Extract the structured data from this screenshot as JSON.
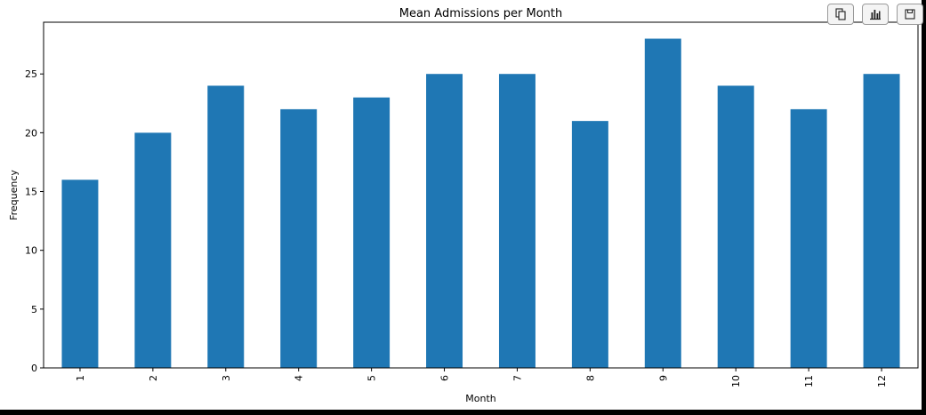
{
  "chart_data": {
    "type": "bar",
    "title": "Mean Admissions per Month",
    "xlabel": "Month",
    "ylabel": "Frequency",
    "categories": [
      "1",
      "2",
      "3",
      "4",
      "5",
      "6",
      "7",
      "8",
      "9",
      "10",
      "11",
      "12"
    ],
    "values": [
      16,
      20,
      24,
      22,
      23,
      25,
      25,
      21,
      28,
      24,
      22,
      25
    ],
    "ylim": [
      0,
      29.4
    ],
    "yticks": [
      0,
      5,
      10,
      15,
      20,
      25
    ],
    "bar_color": "#1f77b4",
    "grid": false,
    "xtick_rotation": "vertical"
  },
  "toolbar": {
    "buttons": [
      {
        "icon": "copy-icon"
      },
      {
        "icon": "chart-icon"
      },
      {
        "icon": "save-icon"
      }
    ]
  }
}
